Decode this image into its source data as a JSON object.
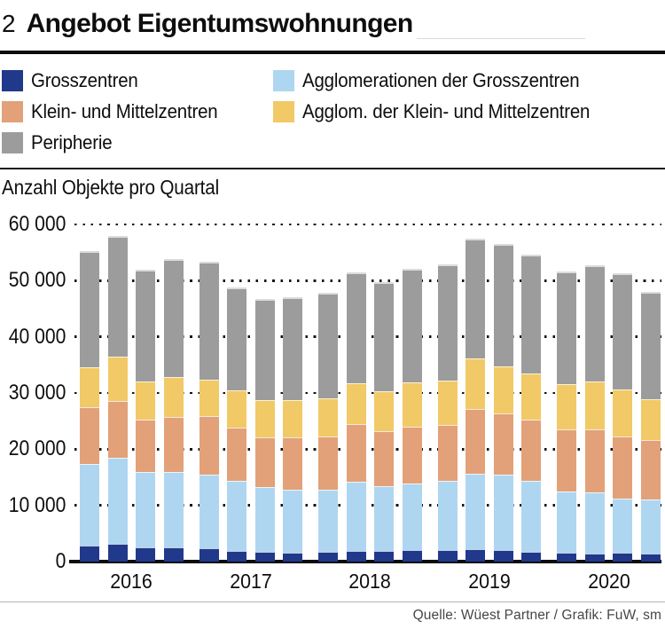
{
  "header": {
    "index": "2",
    "title": "Angebot Eigentumswohnungen"
  },
  "source": "Quelle: Wüest Partner / Grafik: FuW, sm",
  "chart_data": {
    "type": "bar",
    "stacked": true,
    "title": "Angebot Eigentumswohnungen",
    "ylabel": "Anzahl Objekte pro Quartal",
    "xlabel": "",
    "ylim": [
      0,
      60000
    ],
    "grid": "dotted-horizontal",
    "legend_position": "top",
    "x_years": [
      "2016",
      "2017",
      "2018",
      "2019",
      "2020"
    ],
    "bars_per_year": 4,
    "yticks": [
      {
        "label": "60 000",
        "value": 60000
      },
      {
        "label": "50 000",
        "value": 50000
      },
      {
        "label": "40 000",
        "value": 40000
      },
      {
        "label": "30 000",
        "value": 30000
      },
      {
        "label": "20 000",
        "value": 20000
      },
      {
        "label": "10 000",
        "value": 10000
      },
      {
        "label": "0",
        "value": 0
      }
    ],
    "series": [
      {
        "name": "Grosszentren",
        "color": "#21398b",
        "values": [
          2800,
          3100,
          2500,
          2500,
          2400,
          1900,
          1700,
          1600,
          1700,
          1900,
          1900,
          2000,
          2100,
          2200,
          2000,
          1800,
          1500,
          1400,
          1500,
          1400
        ]
      },
      {
        "name": "Agglomerationen der Grosszentren",
        "color": "#afd6f1",
        "values": [
          14600,
          15300,
          13500,
          13500,
          13100,
          12400,
          11600,
          11200,
          11100,
          12300,
          11500,
          11900,
          12200,
          13500,
          13400,
          12500,
          10900,
          10900,
          9700,
          9600
        ]
      },
      {
        "name": "Klein- und Mittelzentren",
        "color": "#e2a178",
        "values": [
          10100,
          10100,
          9300,
          9700,
          10400,
          9500,
          8800,
          9300,
          9400,
          10200,
          9800,
          10100,
          10000,
          11500,
          10900,
          11000,
          11200,
          11200,
          11100,
          10600
        ]
      },
      {
        "name": "Agglom. der Klein- und Mittelzentren",
        "color": "#f1c966",
        "values": [
          7000,
          8000,
          6800,
          7100,
          6500,
          6700,
          6600,
          6700,
          6800,
          7300,
          7100,
          7900,
          7900,
          9000,
          8500,
          8200,
          8000,
          8600,
          8300,
          7300
        ]
      },
      {
        "name": "Peripherie",
        "color": "#9c9c9c",
        "values": [
          20800,
          21400,
          19800,
          21000,
          20900,
          18300,
          18000,
          18200,
          18900,
          19700,
          19400,
          20200,
          20700,
          21300,
          21700,
          21100,
          20100,
          20700,
          20700,
          19100
        ]
      }
    ]
  }
}
